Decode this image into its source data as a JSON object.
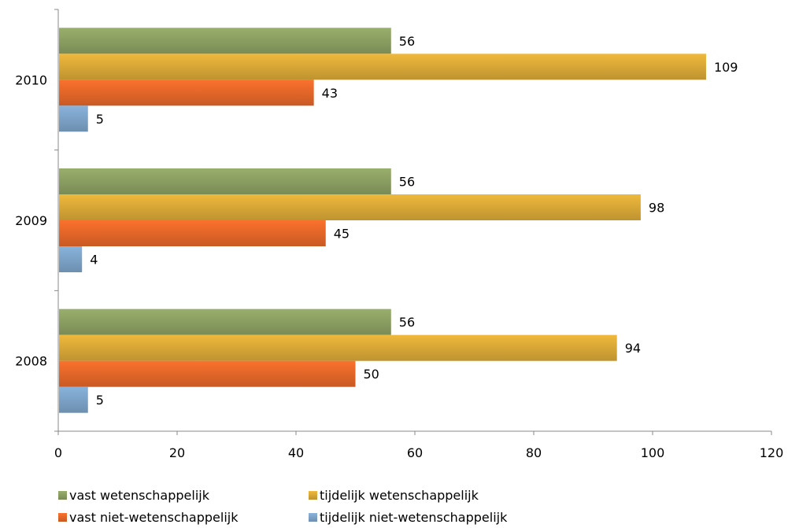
{
  "chart_data": {
    "type": "bar",
    "orientation": "horizontal",
    "categories": [
      "2008",
      "2009",
      "2010"
    ],
    "series": [
      {
        "name": "vast wetenschappelijk",
        "values": [
          56,
          56,
          56
        ],
        "color": "#8ea264"
      },
      {
        "name": "tijdelijk wetenschappelijk",
        "values": [
          94,
          98,
          109
        ],
        "color": "#ddab38"
      },
      {
        "name": "vast niet-wetenschappelijk",
        "values": [
          50,
          45,
          43
        ],
        "color": "#e8692a"
      },
      {
        "name": "tijdelijk niet-wetenschappelijk",
        "values": [
          5,
          4,
          5
        ],
        "color": "#7fa6cc"
      }
    ],
    "xlim": [
      0,
      120
    ],
    "xticks": [
      "0",
      "20",
      "40",
      "60",
      "80",
      "100",
      "120"
    ],
    "title": "",
    "xlabel": "",
    "ylabel": "",
    "grid": false,
    "legend_position": "bottom"
  }
}
